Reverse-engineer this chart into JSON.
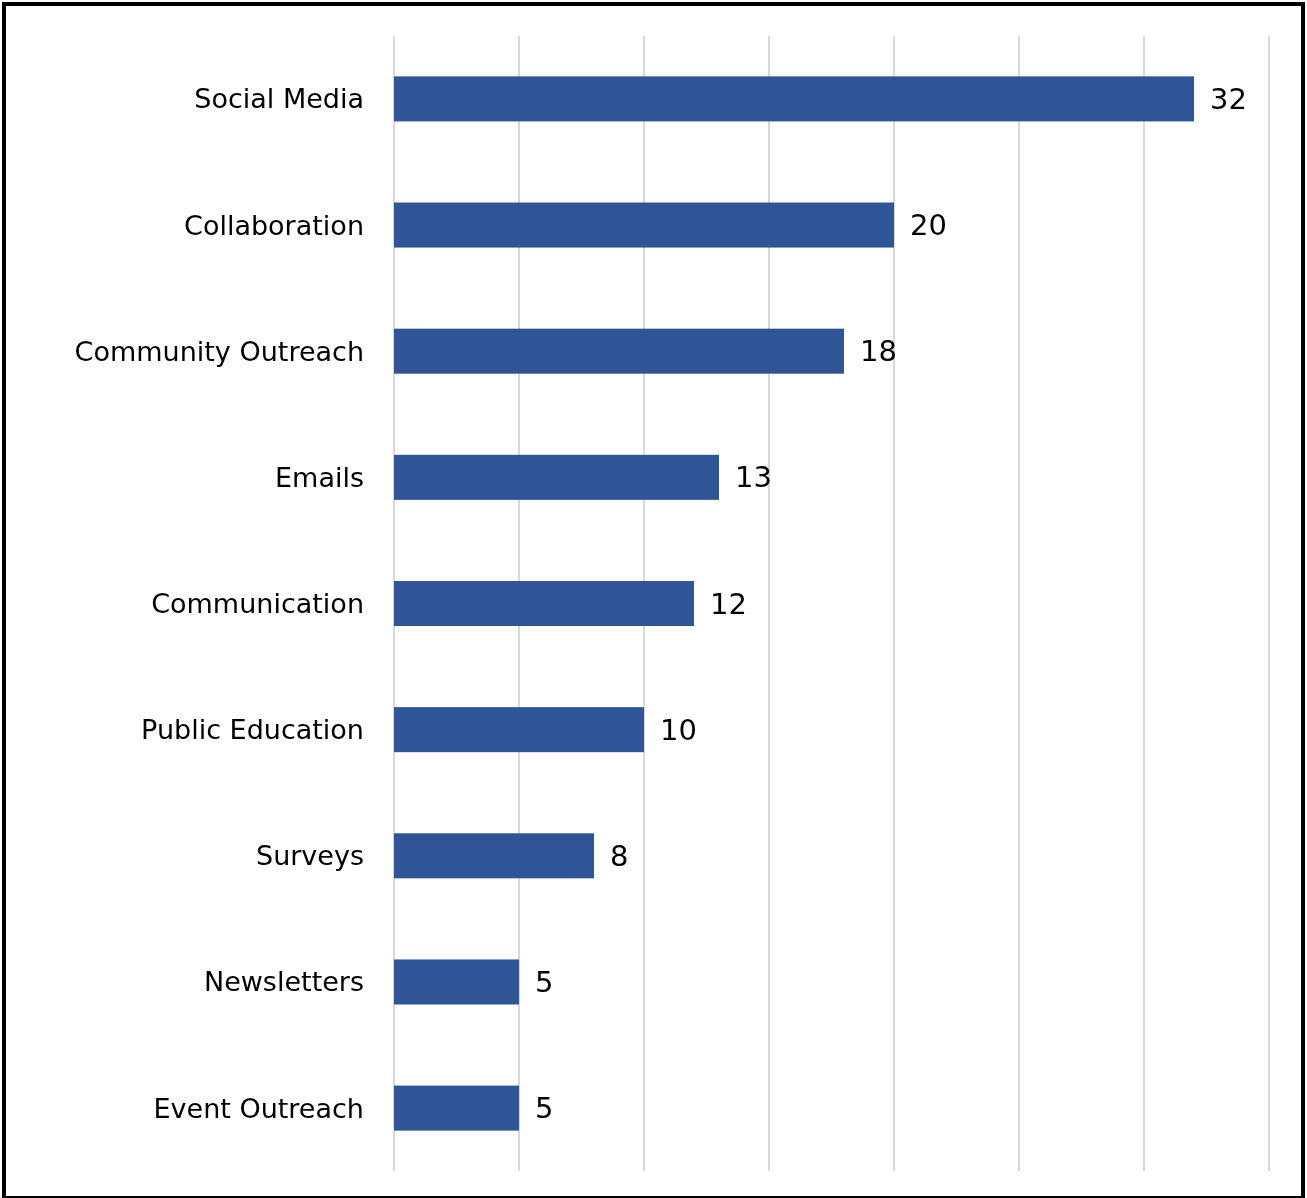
{
  "chart_data": {
    "type": "bar",
    "orientation": "horizontal",
    "categories": [
      "Social Media",
      "Collaboration",
      "Community Outreach",
      "Emails",
      "Communication",
      "Public Education",
      "Surveys",
      "Newsletters",
      "Event Outreach"
    ],
    "values": [
      32,
      20,
      18,
      13,
      12,
      10,
      8,
      5,
      5
    ],
    "color": "#2f5597",
    "xlim": [
      0,
      35
    ],
    "xticks": [
      {
        "value": 0,
        "label": null
      },
      {
        "value": 5,
        "label": null
      },
      {
        "value": 10,
        "label": null
      },
      {
        "value": 15,
        "label": null
      },
      {
        "value": 20,
        "label": null
      },
      {
        "value": 25,
        "label": null
      },
      {
        "value": 30,
        "label": null
      },
      {
        "value": 35,
        "label": null
      }
    ],
    "grid": "x",
    "tick_labels": "y",
    "data_labels": true
  }
}
